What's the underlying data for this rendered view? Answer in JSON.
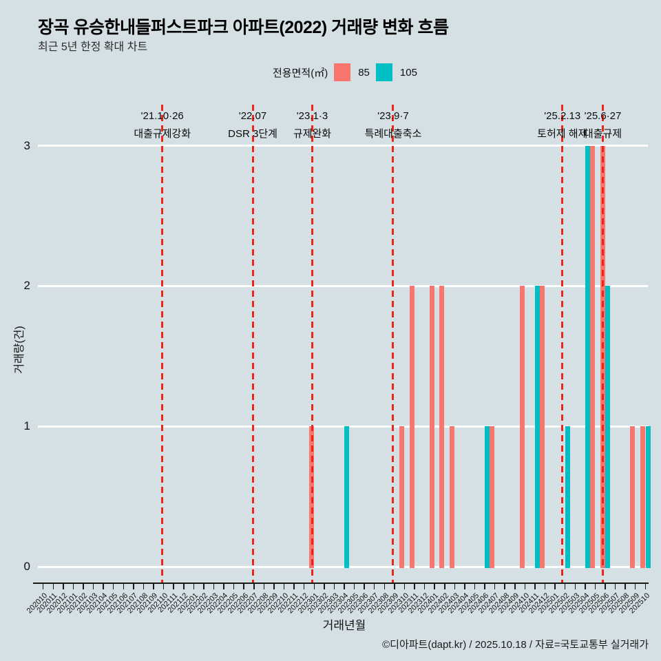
{
  "title": "장곡 유승한내들퍼스트파크 아파트(2022) 거래량 변화 흐름",
  "subtitle": "최근 5년 한정 확대 차트",
  "legend": {
    "label": "전용면적(㎡)",
    "items": [
      {
        "name": "85",
        "color": "#F8766D"
      },
      {
        "name": "105",
        "color": "#00BFC4"
      }
    ]
  },
  "footer": "©디아파트(dapt.kr) / 2025.10.18 / 자료=국토교통부 실거래가",
  "colors": {
    "background": "#d5e0e5",
    "gridline": "#ffffff",
    "axis": "#1a1a1a",
    "event_line": "#ee2419",
    "series_85": "#F8766D",
    "series_105": "#00BFC4"
  },
  "chart_data": {
    "type": "bar",
    "title": "장곡 유승한내들퍼스트파크 아파트(2022) 거래량 변화 흐름",
    "subtitle": "최근 5년 한정 확대 차트",
    "xlabel": "거래년월",
    "ylabel": "거래량(건)",
    "ylim": [
      0,
      3
    ],
    "yticks": [
      0,
      1,
      2,
      3
    ],
    "grid": "horizontal-white",
    "legend_position": "top",
    "legend_title": "전용면적(㎡)",
    "categories": [
      "202010",
      "202011",
      "202012",
      "202101",
      "202102",
      "202103",
      "202104",
      "202105",
      "202106",
      "202107",
      "202108",
      "202109",
      "202110",
      "202111",
      "202112",
      "202201",
      "202202",
      "202203",
      "202204",
      "202205",
      "202206",
      "202207",
      "202208",
      "202209",
      "202210",
      "202211",
      "202212",
      "202301",
      "202302",
      "202303",
      "202304",
      "202305",
      "202306",
      "202307",
      "202308",
      "202309",
      "202310",
      "202311",
      "202312",
      "202401",
      "202402",
      "202403",
      "202404",
      "202405",
      "202406",
      "202407",
      "202408",
      "202409",
      "202410",
      "202411",
      "202412",
      "202501",
      "202502",
      "202503",
      "202504",
      "202505",
      "202506",
      "202507",
      "202508",
      "202509",
      "202510"
    ],
    "series": [
      {
        "name": "85",
        "color": "#F8766D",
        "values": [
          0,
          0,
          0,
          0,
          0,
          0,
          0,
          0,
          0,
          0,
          0,
          0,
          0,
          0,
          0,
          0,
          0,
          0,
          0,
          0,
          0,
          0,
          0,
          0,
          0,
          0,
          0,
          1,
          0,
          0,
          0,
          0,
          0,
          0,
          0,
          0,
          1,
          2,
          0,
          2,
          2,
          1,
          0,
          0,
          0,
          1,
          0,
          0,
          2,
          0,
          2,
          0,
          0,
          0,
          0,
          3,
          3,
          0,
          0,
          1,
          1
        ]
      },
      {
        "name": "105",
        "color": "#00BFC4",
        "values": [
          0,
          0,
          0,
          0,
          0,
          0,
          0,
          0,
          0,
          0,
          0,
          0,
          0,
          0,
          0,
          0,
          0,
          0,
          0,
          0,
          0,
          0,
          0,
          0,
          0,
          0,
          0,
          0,
          0,
          0,
          1,
          0,
          0,
          0,
          0,
          0,
          0,
          0,
          0,
          0,
          0,
          0,
          0,
          0,
          1,
          0,
          0,
          0,
          0,
          2,
          0,
          0,
          1,
          0,
          3,
          0,
          2,
          0,
          0,
          0,
          1
        ]
      }
    ],
    "annotations": [
      {
        "date": "'21.10·26",
        "label": "대출규제강화",
        "pos": 11.87
      },
      {
        "date": "'22.07",
        "label": "DSR 3단계",
        "pos": 20.88
      },
      {
        "date": "'23.1·3",
        "label": "규제완화",
        "pos": 26.81
      },
      {
        "date": "'23.9·7",
        "label": "특례대출축소",
        "pos": 34.87
      },
      {
        "date": "'25.2.13",
        "label": "토허제 해제",
        "pos": 51.73
      },
      {
        "date": "'25.6·27",
        "label": "대출규제",
        "pos": 55.76
      }
    ]
  }
}
